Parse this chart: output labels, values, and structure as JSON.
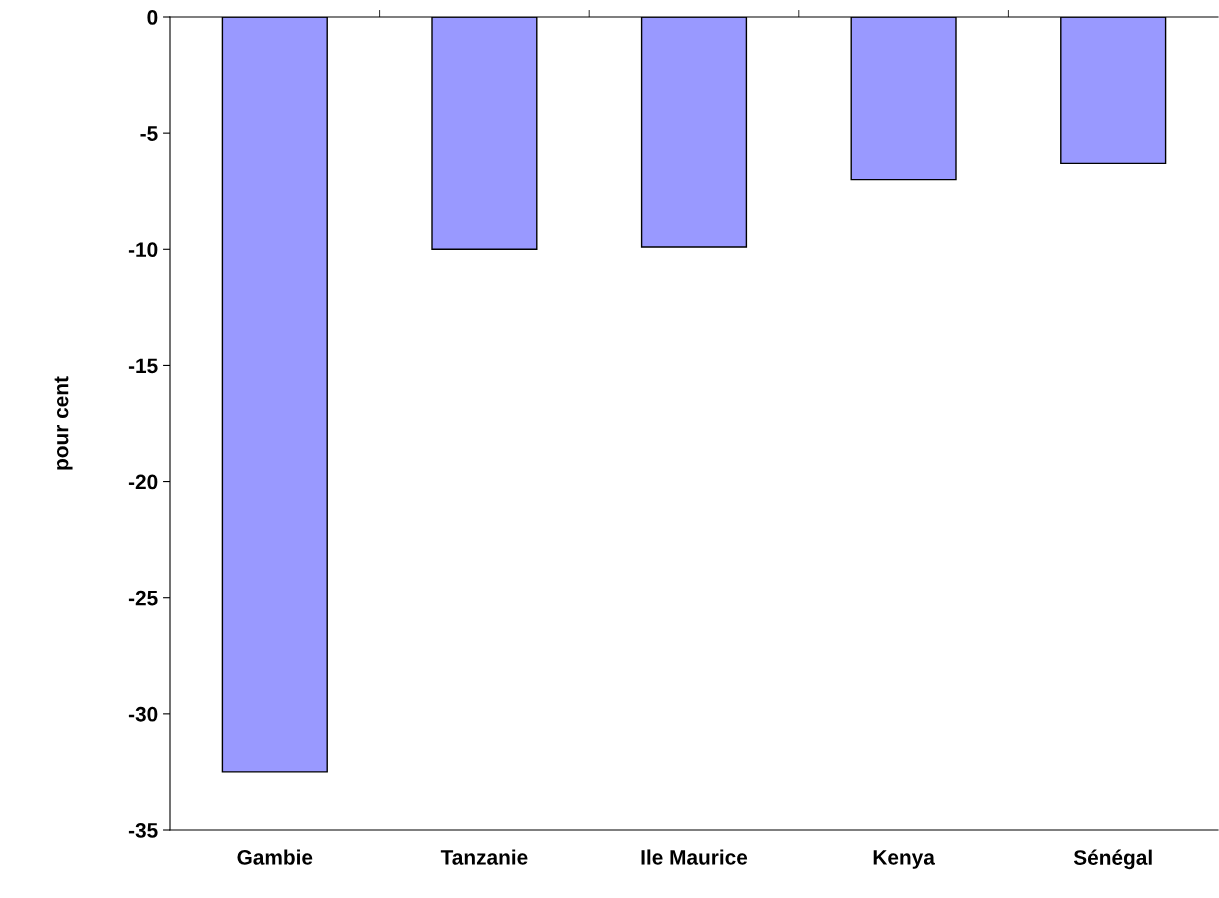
{
  "chart_data": {
    "type": "bar",
    "ylabel": "pour cent",
    "categories": [
      "Gambie",
      "Tanzanie",
      "Ile Maurice",
      "Kenya",
      "Sénégal"
    ],
    "values": [
      -32.5,
      -10.0,
      -9.9,
      -7.0,
      -6.3
    ],
    "color": "#9999ff",
    "ylim": [
      -35,
      0
    ],
    "yticks": [
      {
        "value": -35,
        "label": "-35"
      },
      {
        "value": -30,
        "label": "-30"
      },
      {
        "value": -25,
        "label": "-25"
      },
      {
        "value": -20,
        "label": "-20"
      },
      {
        "value": -15,
        "label": "-15"
      },
      {
        "value": -10,
        "label": "-10"
      },
      {
        "value": -5,
        "label": "-5"
      },
      0
    ],
    "grid": false,
    "legend": false
  }
}
